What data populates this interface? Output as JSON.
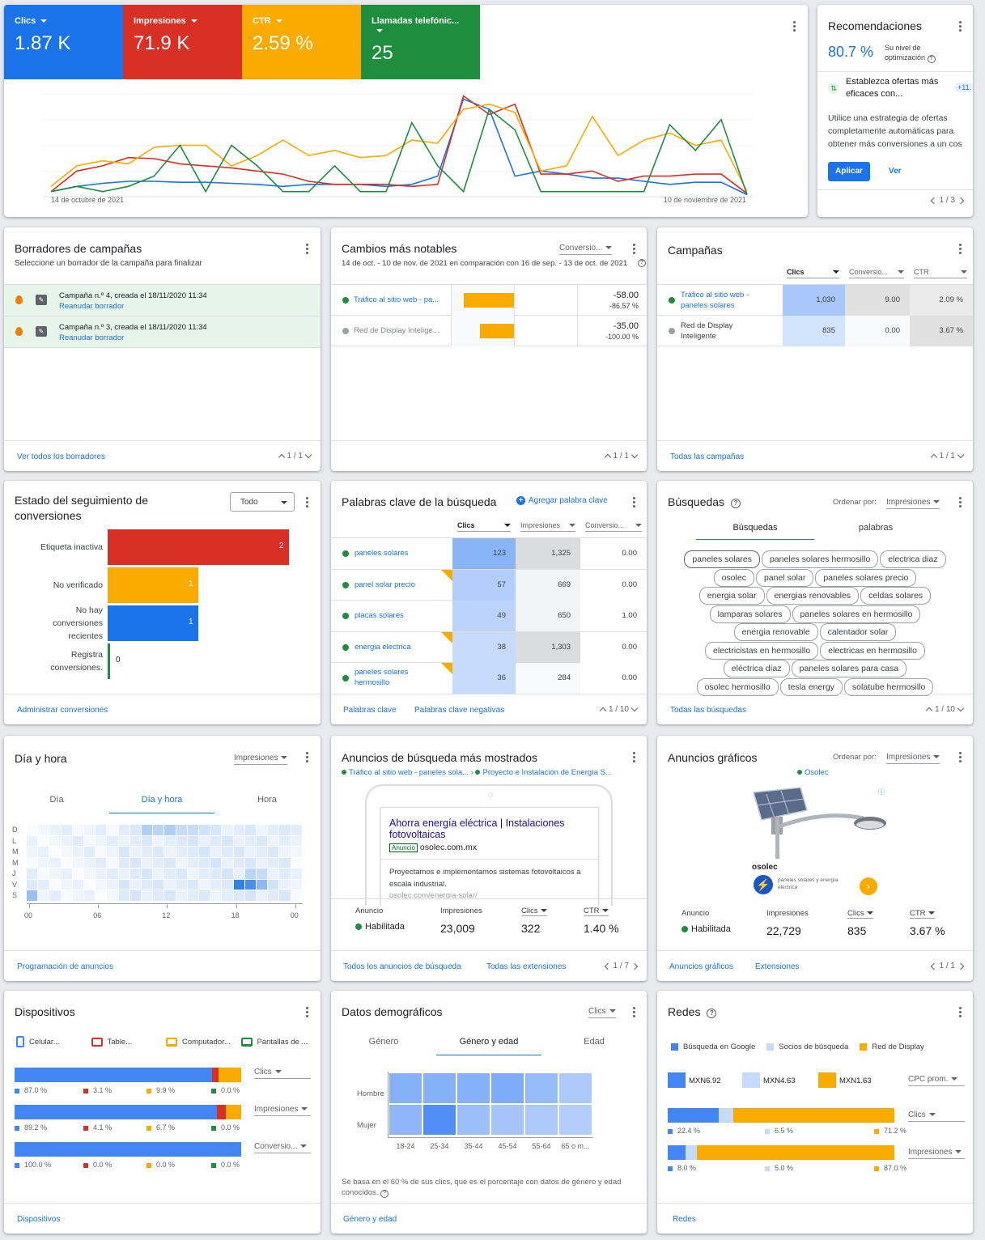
{
  "overview": {
    "metrics": [
      {
        "label": "Clics",
        "value": "1.87 K",
        "color": "#1a73e8"
      },
      {
        "label": "Impresiones",
        "value": "71.9 K",
        "color": "#d93025"
      },
      {
        "label": "CTR",
        "value": "2.59 %",
        "color": "#f9ab00"
      },
      {
        "label": "Llamadas telefónic...",
        "value": "25",
        "color": "#1e8e3e"
      }
    ],
    "x_start_label": "14 de octubre de 2021",
    "x_end_label": "10 de noviembre de 2021",
    "chart_data": {
      "type": "line",
      "x": [
        "14 oct",
        "15 oct",
        "16 oct",
        "17 oct",
        "18 oct",
        "19 oct",
        "20 oct",
        "21 oct",
        "22 oct",
        "23 oct",
        "24 oct",
        "25 oct",
        "26 oct",
        "27 oct",
        "28 oct",
        "29 oct",
        "30 oct",
        "31 oct",
        "1 nov",
        "2 nov",
        "3 nov",
        "4 nov",
        "5 nov",
        "6 nov",
        "7 nov",
        "8 nov",
        "9 nov",
        "10 nov"
      ],
      "series": [
        {
          "name": "Clics",
          "color": "#1a73e8",
          "values": [
            0.05,
            0.1,
            0.13,
            0.15,
            0.15,
            0.14,
            0.14,
            0.13,
            0.12,
            0.1,
            0.12,
            0.12,
            0.12,
            0.1,
            0.12,
            0.2,
            0.95,
            0.85,
            0.2,
            0.25,
            0.22,
            0.18,
            0.18,
            0.15,
            0.12,
            0.14,
            0.14,
            0.02
          ]
        },
        {
          "name": "Impresiones",
          "color": "#d93025",
          "values": [
            0.05,
            0.25,
            0.3,
            0.38,
            0.37,
            0.32,
            0.3,
            0.28,
            0.25,
            0.22,
            0.15,
            0.12,
            0.12,
            0.12,
            0.1,
            0.12,
            0.98,
            0.8,
            0.9,
            0.22,
            0.22,
            0.25,
            0.15,
            0.2,
            0.2,
            0.22,
            0.22,
            0.03
          ]
        },
        {
          "name": "CTR",
          "color": "#f9ab00",
          "values": [
            0.1,
            0.3,
            0.35,
            0.32,
            0.48,
            0.5,
            0.5,
            0.3,
            0.4,
            0.55,
            0.4,
            0.45,
            0.38,
            0.4,
            0.55,
            0.52,
            0.85,
            0.9,
            0.82,
            0.25,
            0.3,
            0.78,
            0.4,
            0.55,
            0.62,
            0.5,
            0.55,
            0.05
          ]
        },
        {
          "name": "Llamadas telefónicas",
          "color": "#1e8e3e",
          "values": [
            0.05,
            0.1,
            0.05,
            0.1,
            0.2,
            0.5,
            0.05,
            0.5,
            0.3,
            0.05,
            0.05,
            0.3,
            0.05,
            0.05,
            0.72,
            0.3,
            0.05,
            0.85,
            0.65,
            0.05,
            0.05,
            0.05,
            0.05,
            0.05,
            0.7,
            0.45,
            0.75,
            0.02
          ]
        }
      ]
    }
  },
  "recs": {
    "title": "Recomendaciones",
    "score": "80.7 %",
    "score_label": "Su nivel de optimización",
    "item_title": "Establezca ofertas más eficaces con...",
    "badge": "+11.",
    "desc": "Utilice una estrategia de ofertas completamente automáticas para obtener más conversiones a un cos",
    "apply": "Aplicar",
    "view": "Ver",
    "pager": "1 / 3"
  },
  "drafts": {
    "title": "Borradores de campañas",
    "subtitle": "Seleccione un borrador de la campaña para finalizar",
    "items": [
      {
        "name": "Campaña n.º 4, creada el 18/11/2020 11:34",
        "action": "Reanudar borrador"
      },
      {
        "name": "Campaña n.º 3, creada el 18/11/2020 11:34",
        "action": "Reanudar borrador"
      }
    ],
    "footer_link": "Ver todos los borradores",
    "pager": "1 / 1"
  },
  "changes": {
    "title": "Cambios más notables",
    "select": "Conversio...",
    "subtitle": "14 de oct. - 10 de nov. de 2021 en comparación con 16 de sep. - 13 de oct. de 2021",
    "rows": [
      {
        "name": "Tráfico al sitio web - pa...",
        "value": "-58.00",
        "pct": "-86.57 %",
        "bar": 0.86,
        "color": "#1e8e3e"
      },
      {
        "name": "Red de Display Intelige...",
        "value": "-35.00",
        "pct": "-100.00 %",
        "bar": 0.58,
        "color": "#9aa0a6"
      }
    ],
    "pager": "1 / 1"
  },
  "campaigns": {
    "title": "Campañas",
    "headers": [
      "Clics",
      "Conversio...",
      "CTR"
    ],
    "rows": [
      {
        "name": "Tráfico al sitio web - paneles solares",
        "clicks": "1,030",
        "conv": "9.00",
        "ctr": "2.09 %",
        "color": "#1e8e3e"
      },
      {
        "name": "Red de Display Inteligente",
        "clicks": "835",
        "conv": "0.00",
        "ctr": "3.67 %",
        "color": "#9aa0a6"
      }
    ],
    "footer_link": "Todas las campañas",
    "pager": "1 / 1"
  },
  "conv_status": {
    "title": "Estado del seguimiento de conversiones",
    "select": "Todo",
    "chart_data": {
      "type": "bar",
      "categories": [
        "Etiqueta inactiva",
        "No verificado",
        "No hay conversiones recientes",
        "Registra conversiones."
      ],
      "values": [
        2,
        1,
        1,
        0
      ],
      "colors": [
        "#d93025",
        "#f9ab00",
        "#1a73e8",
        "#1e8e3e"
      ],
      "xlim": [
        0,
        2
      ]
    },
    "labels": [
      "Etiqueta inactiva",
      "No verificado",
      "No hay conversiones recientes",
      "Registra conversiones."
    ],
    "value_labels": [
      "2",
      "1",
      "1",
      "0"
    ],
    "footer_link": "Administrar conversiones"
  },
  "keywords": {
    "title": "Palabras clave de la búsqueda",
    "add": "Agregar palabra clave",
    "headers": [
      "Clics",
      "Impresiones",
      "Conversio..."
    ],
    "rows": [
      {
        "kw": "paneles solares",
        "clicks": "123",
        "impr": "1,325",
        "conv": "0.00",
        "flag": false
      },
      {
        "kw": "panel solar precio",
        "clicks": "57",
        "impr": "669",
        "conv": "0.00",
        "flag": true
      },
      {
        "kw": "placas solares",
        "clicks": "49",
        "impr": "650",
        "conv": "1.00",
        "flag": false
      },
      {
        "kw": "energia electrica",
        "clicks": "38",
        "impr": "1,303",
        "conv": "0.00",
        "flag": true
      },
      {
        "kw": "paneles solares hermosillo",
        "clicks": "36",
        "impr": "284",
        "conv": "0.00",
        "flag": true
      }
    ],
    "footer_links": [
      "Palabras clave",
      "Palabras clave negativas"
    ],
    "pager": "1 / 10"
  },
  "searches": {
    "title": "Búsquedas",
    "sort_label": "Ordenar por:",
    "sort_value": "Impresiones",
    "tabs": [
      "Búsquedas",
      "palabras"
    ],
    "chips": [
      [
        "paneles solares",
        "paneles solares hermosillo",
        "electrica diaz"
      ],
      [
        "osolec",
        "panel solar",
        "paneles solares precio"
      ],
      [
        "energia solar",
        "energias renovables",
        "celdas solares"
      ],
      [
        "lamparas solares",
        "paneles solares en hermosillo"
      ],
      [
        "energia renovable",
        "calentador solar"
      ],
      [
        "electricistas en hermosillo",
        "electricas en hermosillo"
      ],
      [
        "eléctrica díaz",
        "paneles solares para casa"
      ],
      [
        "osolec hermosillo",
        "tesla energy",
        "solatube hermosillo"
      ]
    ],
    "footer_link": "Todas las búsquedas",
    "pager": "1 / 10"
  },
  "dayhour": {
    "title": "Día y hora",
    "select": "Impresiones",
    "tabs": [
      "Día",
      "Día y hora",
      "Hora"
    ],
    "days": [
      "D",
      "L",
      "M",
      "M",
      "J",
      "V",
      "S"
    ],
    "hours": [
      "00",
      "06",
      "12",
      "18",
      "00"
    ],
    "footer_link": "Programación de anuncios"
  },
  "search_ads": {
    "title": "Anuncios de búsqueda más mostrados",
    "campaign": "Tráfico al sitio web - paneles sola...",
    "adgroup": "Proyecto e Instalación de Energía S...",
    "headline": "Ahorra energía eléctrica | Instalaciones fotovoltaicas",
    "ad_badge": "Anuncio",
    "url": "osolec.com.mx",
    "desc": "Proyectamos e implementamos sistemas fotovoltaicos a escala industrial.",
    "path": "osolec.com/energia-solar/",
    "stats": {
      "h1": "Anuncio",
      "v1": "Habilitada",
      "h2": "Impresiones",
      "v2": "23,009",
      "h3": "Clics",
      "v3": "322",
      "h4": "CTR",
      "v4": "1.40 %"
    },
    "footer_links": [
      "Todos los anuncios de búsqueda",
      "Todas las extensiones"
    ],
    "pager": "1 / 7"
  },
  "display_ads": {
    "title": "Anuncios gráficos",
    "sort_label": "Ordenar por:",
    "sort_value": "Impresiones",
    "campaign": "Osolec",
    "brand": "osolec",
    "tagline": "paneles solares y energía eléctrica",
    "stats": {
      "h1": "Anuncio",
      "v1": "Habilitada",
      "h2": "Impresiones",
      "v2": "22,729",
      "h3": "Clics",
      "v3": "835",
      "h4": "CTR",
      "v4": "3.67 %"
    },
    "footer_links": [
      "Anuncios gráficos",
      "Extensiones"
    ],
    "pager": "1 / 1"
  },
  "devices": {
    "title": "Dispositivos",
    "legend": [
      "Celular...",
      "Table...",
      "Computador...",
      "Pantallas de ..."
    ],
    "colors": [
      "#4285f4",
      "#d93025",
      "#f9ab00",
      "#1e8e3e"
    ],
    "rows": [
      {
        "metric": "Clics",
        "values": [
          87.0,
          3.1,
          9.9,
          0.0
        ],
        "labels": [
          "87.0 %",
          "3.1 %",
          "9.9 %",
          "0.0 %"
        ]
      },
      {
        "metric": "Impresiones",
        "values": [
          89.2,
          4.1,
          6.7,
          0.0
        ],
        "labels": [
          "89.2 %",
          "4.1 %",
          "6.7 %",
          "0.0 %"
        ]
      },
      {
        "metric": "Conversio...",
        "values": [
          100.0,
          0.0,
          0.0,
          0.0
        ],
        "labels": [
          "100.0 %",
          "0.0 %",
          "0.0 %",
          "0.0 %"
        ]
      }
    ],
    "footer_link": "Dispositivos"
  },
  "demographics": {
    "title": "Datos demográficos",
    "select": "Clics",
    "tabs": [
      "Género",
      "Género y edad",
      "Edad"
    ],
    "rows": [
      "Hombre",
      "Mujer"
    ],
    "cols": [
      "18-24",
      "25-34",
      "35-44",
      "45-54",
      "55-64",
      "65 o m..."
    ],
    "intensity": [
      [
        0.55,
        0.55,
        0.55,
        0.6,
        0.45,
        0.3
      ],
      [
        0.5,
        0.9,
        0.4,
        0.35,
        0.3,
        0.25
      ]
    ],
    "note": "Se basa en el 60 % de sus clics, que es el porcentaje con datos de género y edad conocidos.",
    "footer_link": "Género y edad"
  },
  "networks": {
    "title": "Redes",
    "legend": [
      "Búsqueda en Google",
      "Socios de búsqueda",
      "Red de Display"
    ],
    "colors": [
      "#4285f4",
      "#c6dafc",
      "#f9ab00"
    ],
    "cpc": [
      "MXN6.92",
      "MXN4.63",
      "MXN1.63"
    ],
    "cpc_select": "CPC prom.",
    "rows": [
      {
        "metric": "Clics",
        "values": [
          22.4,
          6.5,
          71.2
        ],
        "labels": [
          "22.4 %",
          "6.5 %",
          "71.2 %"
        ]
      },
      {
        "metric": "Impresiones",
        "values": [
          8.0,
          5.0,
          87.0
        ],
        "labels": [
          "8.0 %",
          "5.0 %",
          "87.0 %"
        ]
      }
    ],
    "footer_link": "Redes"
  }
}
